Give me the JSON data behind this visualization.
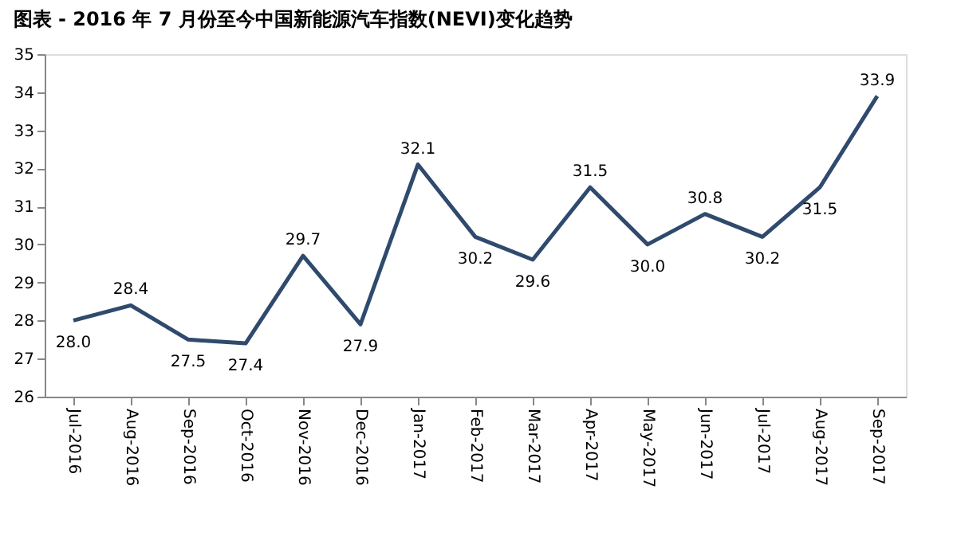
{
  "chart_data": {
    "type": "line",
    "title": "图表 - 2016 年 7 月份至今中国新能源汽车指数(NEVI)变化趋势",
    "categories": [
      "Jul-2016",
      "Aug-2016",
      "Sep-2016",
      "Oct-2016",
      "Nov-2016",
      "Dec-2016",
      "Jan-2017",
      "Feb-2017",
      "Mar-2017",
      "Apr-2017",
      "May-2017",
      "Jun-2017",
      "Jul-2017",
      "Aug-2017",
      "Sep-2017"
    ],
    "series": [
      {
        "color": "#2f4a6d",
        "values": [
          28.0,
          28.4,
          27.5,
          27.4,
          29.7,
          27.9,
          32.1,
          30.2,
          29.6,
          31.5,
          30.0,
          30.8,
          30.2,
          31.5,
          33.9
        ],
        "value_labels": [
          "28.0",
          "28.4",
          "27.5",
          "27.4",
          "29.7",
          "27.9",
          "32.1",
          "30.2",
          "29.6",
          "31.5",
          "30.0",
          "30.8",
          "30.2",
          "31.5",
          "33.9"
        ]
      }
    ],
    "ylim": [
      26,
      35
    ],
    "yticks": [
      26,
      27,
      28,
      29,
      30,
      31,
      32,
      33,
      34,
      35
    ],
    "grid": false,
    "marker": "none",
    "line_style": "solid"
  }
}
